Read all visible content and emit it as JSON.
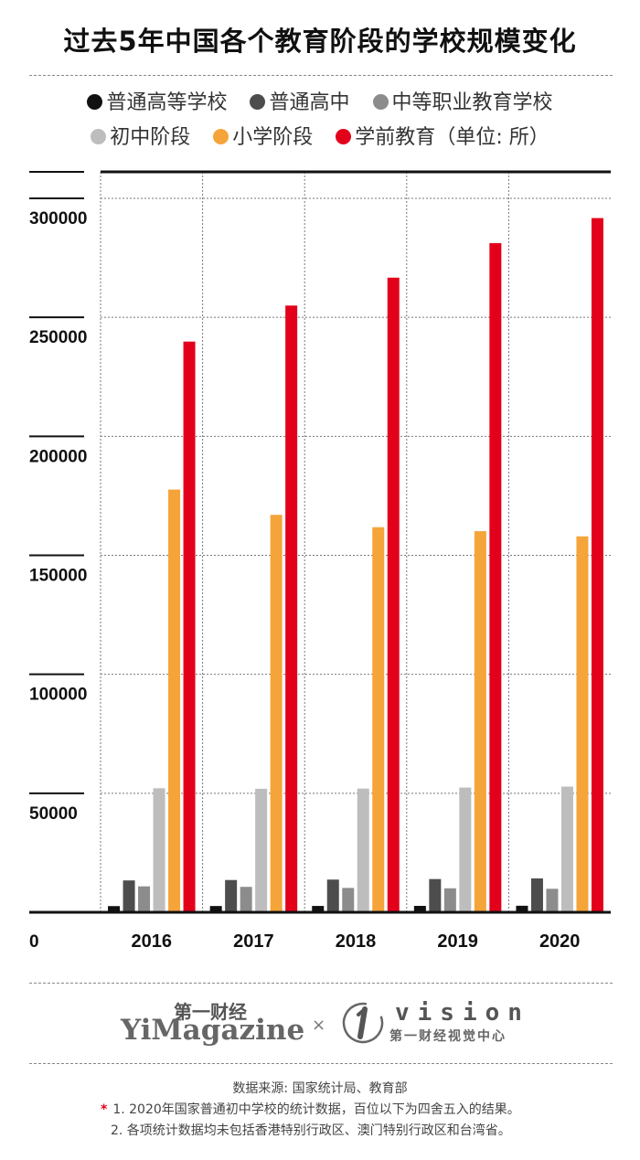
{
  "chart_data": {
    "type": "bar",
    "title": "过去5年中国各个教育阶段的学校规模变化",
    "categories": [
      "2016",
      "2017",
      "2018",
      "2019",
      "2020"
    ],
    "series": [
      {
        "name": "普通高等学校",
        "color": "#111111",
        "values": [
          2596,
          2631,
          2663,
          2688,
          2738
        ]
      },
      {
        "name": "普通高中",
        "color": "#4d4d4d",
        "values": [
          13383,
          13555,
          13737,
          13964,
          14235
        ]
      },
      {
        "name": "中等职业教育学校",
        "color": "#8c8c8c",
        "values": [
          10893,
          10671,
          10229,
          10078,
          9865
        ]
      },
      {
        "name": "初中阶段",
        "color": "#bdbdbd",
        "values": [
          52118,
          51894,
          51982,
          52415,
          52800
        ]
      },
      {
        "name": "小学阶段",
        "color": "#f5a43a",
        "values": [
          177633,
          167009,
          161811,
          160148,
          157979
        ]
      },
      {
        "name": "学前教育",
        "color": "#e3001b",
        "values": [
          239812,
          254950,
          266677,
          281174,
          291715
        ]
      }
    ],
    "legend_suffix": "（单位: 所）",
    "yticks": [
      0,
      50000,
      100000,
      150000,
      200000,
      250000,
      300000
    ],
    "ylim": [
      0,
      300000
    ],
    "grid": true,
    "legend": "top-center"
  },
  "footer": {
    "brand_cn": "第一财经",
    "brand_en": "YiMagazine",
    "brand_sep": "×",
    "vision_word": "vision",
    "vision_cn": "第一财经视觉中心",
    "source": "数据来源: 国家统计局、教育部",
    "note_star": "*",
    "note1": "1. 2020年国家普通初中学校的统计数据，百位以下为四舍五入的结果。",
    "note2": "2. 各项统计数据均未包括香港特别行政区、澳门特别行政区和台湾省。"
  }
}
